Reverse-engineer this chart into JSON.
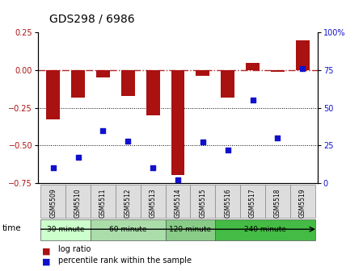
{
  "title": "GDS298 / 6986",
  "samples": [
    "GSM5509",
    "GSM5510",
    "GSM5511",
    "GSM5512",
    "GSM5513",
    "GSM5514",
    "GSM5515",
    "GSM5516",
    "GSM5517",
    "GSM5518",
    "GSM5519"
  ],
  "log_ratio": [
    -0.33,
    -0.18,
    -0.05,
    -0.17,
    -0.3,
    -0.7,
    -0.04,
    -0.18,
    0.05,
    -0.01,
    0.2
  ],
  "percentile": [
    10,
    17,
    35,
    28,
    10,
    2,
    27,
    22,
    55,
    30,
    76
  ],
  "bar_color": "#aa1111",
  "dot_color": "#1111cc",
  "left_ylim": [
    -0.75,
    0.25
  ],
  "right_ylim": [
    0,
    100
  ],
  "left_yticks": [
    -0.75,
    -0.5,
    -0.25,
    0,
    0.25
  ],
  "right_yticks": [
    0,
    25,
    50,
    75,
    100
  ],
  "dotted_lines": [
    -0.25,
    -0.5
  ],
  "zero_line": 0,
  "time_groups": [
    {
      "label": "30 minute",
      "start": 0,
      "end": 1,
      "color": "#ccffcc"
    },
    {
      "label": "60 minute",
      "start": 2,
      "end": 4,
      "color": "#aaddaa"
    },
    {
      "label": "120 minute",
      "start": 5,
      "end": 6,
      "color": "#88cc88"
    },
    {
      "label": "240 minute",
      "start": 7,
      "end": 10,
      "color": "#44bb44"
    }
  ],
  "time_label": "time",
  "legend_bar_label": "log ratio",
  "legend_dot_label": "percentile rank within the sample",
  "title_fontsize": 10,
  "tick_fontsize": 7,
  "bar_width": 0.55,
  "bg_color": "#ffffff",
  "plot_bg": "#ffffff",
  "grid_color": "#cccccc",
  "sample_box_color": "#dddddd"
}
